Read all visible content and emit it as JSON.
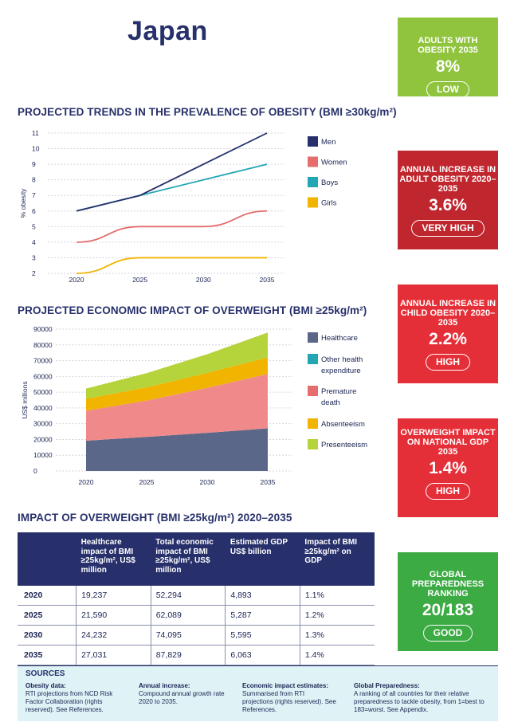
{
  "country": "Japan",
  "colors": {
    "navy": "#27306b",
    "men": "#27306b",
    "women": "#e56d6d",
    "boys": "#22a6b3",
    "girls": "#f1b400",
    "healthcare": "#5b6789",
    "other_health": "#e56d6d",
    "premature": "#f0a54c",
    "absenteeism": "#f2c230",
    "presenteeism": "#b5d33b",
    "green": "#8fc43c",
    "darkred": "#c0262e",
    "red": "#e52f38",
    "good_green": "#3cab43"
  },
  "trend_chart_title": "PROJECTED TRENDS IN THE PREVALENCE OF OBESITY (BMI ≥30kg/m²)",
  "econ_chart_title": "PROJECTED ECONOMIC IMPACT OF OVERWEIGHT (BMI ≥25kg/m²)",
  "table_title": "IMPACT OF OVERWEIGHT (BMI ≥25kg/m²) 2020–2035",
  "chart_data": [
    {
      "type": "line",
      "ylabel": "% obesity",
      "x": [
        2020,
        2025,
        2030,
        2035
      ],
      "ylim": [
        2,
        11
      ],
      "yticks": [
        2,
        3,
        4,
        5,
        6,
        7,
        8,
        9,
        10,
        11
      ],
      "grid": true,
      "legend": "right",
      "series": [
        {
          "name": "Men",
          "key": "men",
          "values": [
            6,
            7,
            9,
            11
          ]
        },
        {
          "name": "Women",
          "key": "women",
          "values": [
            4,
            5,
            5,
            6
          ]
        },
        {
          "name": "Boys",
          "key": "boys",
          "values": [
            6,
            7,
            8,
            9
          ]
        },
        {
          "name": "Girls",
          "key": "girls",
          "values": [
            2,
            3,
            3,
            3
          ]
        }
      ]
    },
    {
      "type": "area",
      "stacked": true,
      "ylabel": "US$ millions",
      "x": [
        2020,
        2025,
        2030,
        2035
      ],
      "ylim": [
        0,
        90000
      ],
      "yticks": [
        0,
        10000,
        20000,
        30000,
        40000,
        50000,
        60000,
        70000,
        80000,
        90000
      ],
      "grid": true,
      "legend": "right",
      "series": [
        {
          "name": "Healthcare",
          "key": "healthcare",
          "values": [
            19237,
            21590,
            24232,
            27031
          ]
        },
        {
          "name": "Other health expenditure",
          "key": "other_health",
          "values": [
            0,
            0,
            0,
            0
          ]
        },
        {
          "name": "Premature death",
          "key": "premature",
          "values": [
            19000,
            23000,
            28500,
            34500
          ]
        },
        {
          "name": "Absenteeism",
          "key": "absenteeism",
          "values": [
            7500,
            8500,
            9500,
            10500
          ]
        },
        {
          "name": "Presenteeism",
          "key": "presenteeism",
          "values": [
            6557,
            8999,
            11863,
            15798
          ]
        }
      ]
    }
  ],
  "trend_legend": [
    {
      "label": "Men",
      "color": "#27306b"
    },
    {
      "label": "Women",
      "color": "#e56d6d"
    },
    {
      "label": "Boys",
      "color": "#22a6b3"
    },
    {
      "label": "Girls",
      "color": "#f1b400"
    }
  ],
  "econ_legend": [
    {
      "label": "Healthcare",
      "color": "#5b6789"
    },
    {
      "label": "Other health expenditure",
      "color": "#22a6b3"
    },
    {
      "label": "Premature death",
      "color": "#e56d6d"
    },
    {
      "label": "Absenteeism",
      "color": "#f1b400"
    },
    {
      "label": "Presenteeism",
      "color": "#b5d33b"
    }
  ],
  "cards": {
    "adults": {
      "title": "ADULTS WITH OBESITY 2035",
      "value": "8%",
      "badge": "LOW"
    },
    "adult_increase": {
      "title": "ANNUAL INCREASE IN ADULT OBESITY 2020–2035",
      "value": "3.6%",
      "badge": "VERY HIGH"
    },
    "child_increase": {
      "title": "ANNUAL INCREASE IN CHILD OBESITY 2020–2035",
      "value": "2.2%",
      "badge": "HIGH"
    },
    "gdp": {
      "title": "OVERWEIGHT IMPACT ON NATIONAL GDP 2035",
      "value": "1.4%",
      "badge": "HIGH"
    },
    "preparedness": {
      "title": "GLOBAL PREPAREDNESS RANKING",
      "value": "20/183",
      "badge": "GOOD"
    }
  },
  "table": {
    "headers": [
      "",
      "Healthcare impact of BMI ≥25kg/m², US$ million",
      "Total economic impact of BMI ≥25kg/m², US$ million",
      "Estimated GDP US$ billion",
      "Impact of BMI ≥25kg/m² on GDP"
    ],
    "rows": [
      [
        "2020",
        "19,237",
        "52,294",
        "4,893",
        "1.1%"
      ],
      [
        "2025",
        "21,590",
        "62,089",
        "5,287",
        "1.2%"
      ],
      [
        "2030",
        "24,232",
        "74,095",
        "5,595",
        "1.3%"
      ],
      [
        "2035",
        "27,031",
        "87,829",
        "6,063",
        "1.4%"
      ]
    ]
  },
  "sources": {
    "title": "SOURCES",
    "cols": [
      {
        "heading": "Obesity data:",
        "text": "RTI projections from NCD Risk Factor Collaboration (rights reserved). See References."
      },
      {
        "heading": "Annual increase:",
        "text": "Compound annual growth rate 2020 to 2035."
      },
      {
        "heading": "Economic impact estimates:",
        "text": "Summarised from RTI projections (rights reserved). See References."
      },
      {
        "heading": "Global Preparedness:",
        "text": "A ranking of all countries for their relative preparedness to tackle obesity, from 1=best to 183=worst. See Appendix."
      }
    ]
  }
}
